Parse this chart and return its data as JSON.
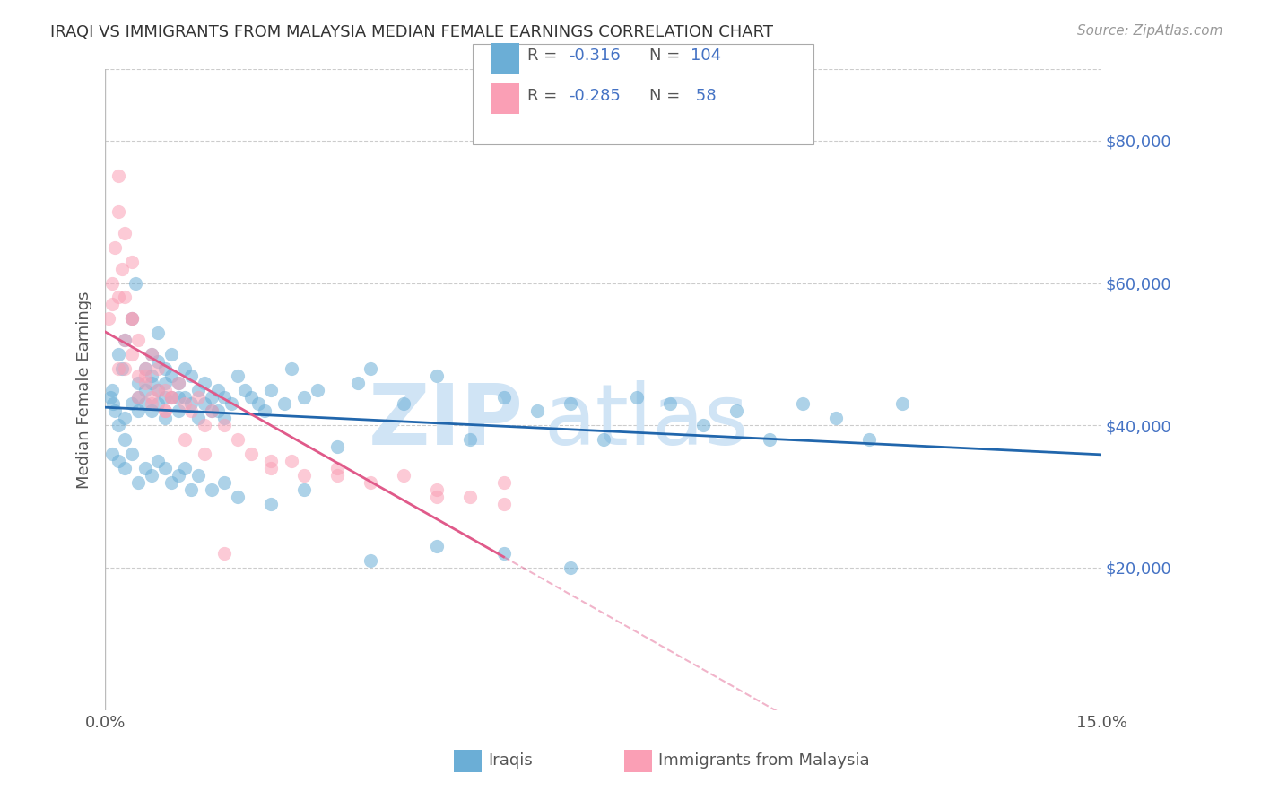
{
  "title": "IRAQI VS IMMIGRANTS FROM MALAYSIA MEDIAN FEMALE EARNINGS CORRELATION CHART",
  "source": "Source: ZipAtlas.com",
  "ylabel": "Median Female Earnings",
  "right_yticks": [
    20000,
    40000,
    60000,
    80000
  ],
  "right_yticklabels": [
    "$20,000",
    "$40,000",
    "$60,000",
    "$80,000"
  ],
  "legend_label_1": "Iraqis",
  "legend_label_2": "Immigrants from Malaysia",
  "blue_color": "#6baed6",
  "pink_color": "#fa9fb5",
  "blue_line_color": "#2166ac",
  "pink_line_color": "#e05a8a",
  "title_color": "#333333",
  "source_color": "#999999",
  "right_axis_color": "#4472c4",
  "watermark_color": "#d0e4f5",
  "grid_color": "#cccccc",
  "xlim": [
    0.0,
    0.15
  ],
  "ylim": [
    0,
    90000
  ],
  "iraqis_x": [
    0.0008,
    0.001,
    0.0012,
    0.0015,
    0.002,
    0.002,
    0.0025,
    0.003,
    0.003,
    0.003,
    0.004,
    0.004,
    0.0045,
    0.005,
    0.005,
    0.005,
    0.006,
    0.006,
    0.006,
    0.007,
    0.007,
    0.007,
    0.007,
    0.008,
    0.008,
    0.008,
    0.008,
    0.009,
    0.009,
    0.009,
    0.009,
    0.01,
    0.01,
    0.01,
    0.011,
    0.011,
    0.011,
    0.012,
    0.012,
    0.013,
    0.013,
    0.014,
    0.014,
    0.015,
    0.015,
    0.016,
    0.016,
    0.017,
    0.017,
    0.018,
    0.018,
    0.019,
    0.02,
    0.021,
    0.022,
    0.023,
    0.024,
    0.025,
    0.027,
    0.028,
    0.03,
    0.032,
    0.035,
    0.038,
    0.04,
    0.045,
    0.05,
    0.055,
    0.06,
    0.065,
    0.07,
    0.075,
    0.08,
    0.085,
    0.09,
    0.095,
    0.1,
    0.105,
    0.11,
    0.115,
    0.12,
    0.001,
    0.002,
    0.003,
    0.004,
    0.005,
    0.006,
    0.007,
    0.008,
    0.009,
    0.01,
    0.011,
    0.012,
    0.013,
    0.014,
    0.016,
    0.018,
    0.02,
    0.025,
    0.03,
    0.04,
    0.05,
    0.06,
    0.07
  ],
  "iraqis_y": [
    44000,
    45000,
    43000,
    42000,
    50000,
    40000,
    48000,
    52000,
    41000,
    38000,
    55000,
    43000,
    60000,
    46000,
    44000,
    42000,
    48000,
    45000,
    43000,
    50000,
    47000,
    46000,
    42000,
    53000,
    49000,
    45000,
    43000,
    48000,
    46000,
    44000,
    41000,
    50000,
    47000,
    44000,
    46000,
    44000,
    42000,
    48000,
    44000,
    47000,
    43000,
    45000,
    41000,
    46000,
    43000,
    44000,
    42000,
    45000,
    42000,
    44000,
    41000,
    43000,
    47000,
    45000,
    44000,
    43000,
    42000,
    45000,
    43000,
    48000,
    44000,
    45000,
    37000,
    46000,
    48000,
    43000,
    47000,
    38000,
    44000,
    42000,
    43000,
    38000,
    44000,
    43000,
    40000,
    42000,
    38000,
    43000,
    41000,
    38000,
    43000,
    36000,
    35000,
    34000,
    36000,
    32000,
    34000,
    33000,
    35000,
    34000,
    32000,
    33000,
    34000,
    31000,
    33000,
    31000,
    32000,
    30000,
    29000,
    31000,
    21000,
    23000,
    22000,
    20000
  ],
  "malaysia_x": [
    0.0005,
    0.001,
    0.0015,
    0.002,
    0.002,
    0.0025,
    0.003,
    0.003,
    0.004,
    0.004,
    0.005,
    0.005,
    0.006,
    0.006,
    0.007,
    0.007,
    0.008,
    0.009,
    0.009,
    0.01,
    0.011,
    0.012,
    0.013,
    0.014,
    0.015,
    0.016,
    0.018,
    0.02,
    0.022,
    0.025,
    0.028,
    0.03,
    0.035,
    0.04,
    0.045,
    0.05,
    0.055,
    0.06,
    0.001,
    0.002,
    0.003,
    0.004,
    0.005,
    0.006,
    0.007,
    0.008,
    0.009,
    0.01,
    0.012,
    0.015,
    0.018,
    0.025,
    0.035,
    0.05,
    0.06,
    0.002,
    0.003,
    0.004
  ],
  "malaysia_y": [
    55000,
    60000,
    65000,
    70000,
    58000,
    62000,
    52000,
    48000,
    55000,
    50000,
    47000,
    52000,
    46000,
    48000,
    50000,
    44000,
    48000,
    45000,
    42000,
    44000,
    46000,
    43000,
    42000,
    44000,
    40000,
    42000,
    40000,
    38000,
    36000,
    35000,
    35000,
    33000,
    34000,
    32000,
    33000,
    30000,
    30000,
    32000,
    57000,
    48000,
    58000,
    55000,
    44000,
    47000,
    43000,
    45000,
    42000,
    44000,
    38000,
    36000,
    22000,
    34000,
    33000,
    31000,
    29000,
    75000,
    67000,
    63000
  ]
}
